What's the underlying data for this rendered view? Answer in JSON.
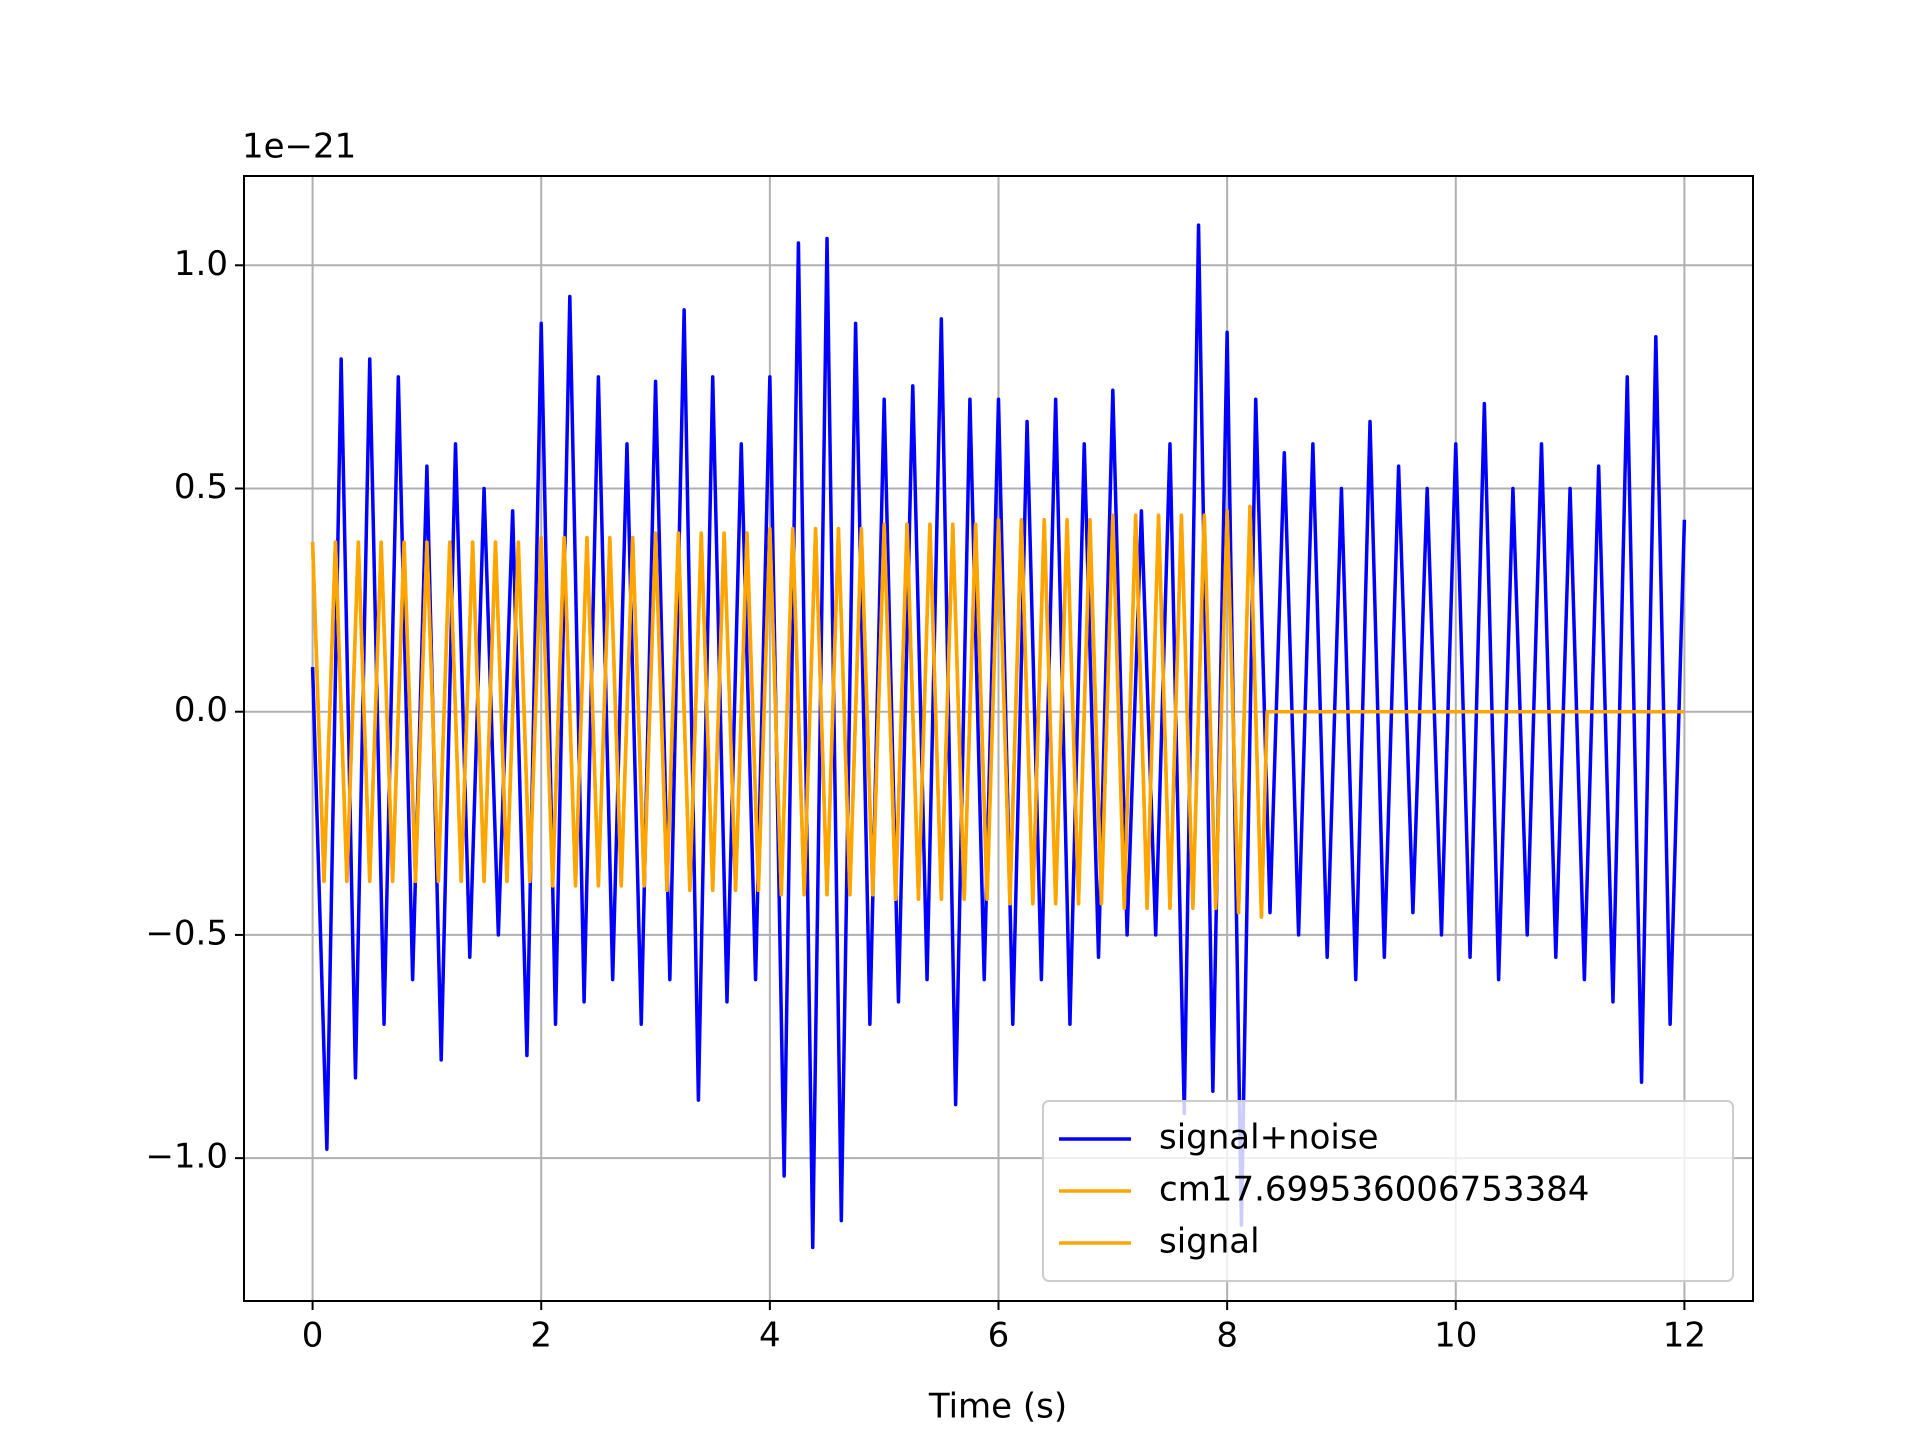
{
  "chart_data": {
    "type": "line",
    "xlabel": "Time (s)",
    "y_offset_label": "1e−21",
    "xlim": [
      -0.6,
      12.6
    ],
    "xticks": [
      0,
      2,
      4,
      6,
      8,
      10,
      12
    ],
    "ylim": [
      -1.32,
      1.2
    ],
    "yticks": [
      {
        "value": -1.0,
        "label": "−1.0"
      },
      {
        "value": -0.5,
        "label": "−0.5"
      },
      {
        "value": 0.0,
        "label": "0.0"
      },
      {
        "value": 0.5,
        "label": "0.5"
      },
      {
        "value": 1.0,
        "label": "1.0"
      }
    ],
    "grid": true,
    "legend": "lower right",
    "series": [
      {
        "name": "signal+noise",
        "color": "#0000ff",
        "x": [
          0,
          0.125,
          0.25,
          0.375,
          0.5,
          0.625,
          0.75,
          0.875,
          1,
          1.125,
          1.25,
          1.375,
          1.5,
          1.625,
          1.75,
          1.875,
          2,
          2.125,
          2.25,
          2.375,
          2.5,
          2.625,
          2.75,
          2.875,
          3,
          3.125,
          3.25,
          3.375,
          3.5,
          3.625,
          3.75,
          3.875,
          4,
          4.125,
          4.25,
          4.375,
          4.5,
          4.625,
          4.75,
          4.875,
          5,
          5.125,
          5.25,
          5.375,
          5.5,
          5.625,
          5.75,
          5.875,
          6,
          6.125,
          6.25,
          6.375,
          6.5,
          6.625,
          6.75,
          6.875,
          7,
          7.125,
          7.25,
          7.375,
          7.5,
          7.625,
          7.75,
          7.875,
          8,
          8.125,
          8.25,
          8.375,
          8.5,
          8.625,
          8.75,
          8.875,
          9,
          9.125,
          9.25,
          9.375,
          9.5,
          9.625,
          9.75,
          9.875,
          10,
          10.125,
          10.25,
          10.375,
          10.5,
          10.625,
          10.75,
          10.875,
          11,
          11.125,
          11.25,
          11.375,
          11.5,
          11.625,
          11.75,
          11.875,
          12
        ],
        "values": [
          0.1,
          -0.98,
          0.79,
          -0.82,
          0.79,
          -0.7,
          0.75,
          -0.6,
          0.55,
          -0.78,
          0.6,
          -0.55,
          0.5,
          -0.5,
          0.45,
          -0.77,
          0.87,
          -0.7,
          0.93,
          -0.65,
          0.75,
          -0.6,
          0.6,
          -0.7,
          0.74,
          -0.6,
          0.9,
          -0.87,
          0.75,
          -0.65,
          0.6,
          -0.6,
          0.75,
          -1.04,
          1.05,
          -1.2,
          1.06,
          -1.14,
          0.87,
          -0.7,
          0.7,
          -0.65,
          0.73,
          -0.6,
          0.88,
          -0.88,
          0.7,
          -0.6,
          0.7,
          -0.7,
          0.65,
          -0.6,
          0.7,
          -0.7,
          0.6,
          -0.55,
          0.72,
          -0.5,
          0.45,
          -0.5,
          0.6,
          -0.9,
          1.09,
          -0.85,
          0.85,
          -1.15,
          0.7,
          -0.45,
          0.58,
          -0.5,
          0.6,
          -0.55,
          0.5,
          -0.6,
          0.65,
          -0.55,
          0.55,
          -0.45,
          0.5,
          -0.5,
          0.6,
          -0.55,
          0.69,
          -0.6,
          0.5,
          -0.5,
          0.6,
          -0.55,
          0.5,
          -0.6,
          0.55,
          -0.65,
          0.75,
          -0.83,
          0.84,
          -0.7,
          0.43
        ]
      },
      {
        "name": "cm17.699536006753384",
        "color": "#ffa500",
        "x": [
          0,
          0.1,
          0.2,
          0.3,
          0.4,
          0.5,
          0.6,
          0.7,
          0.8,
          0.9,
          1,
          1.1,
          1.2,
          1.3,
          1.4,
          1.5,
          1.6,
          1.7,
          1.8,
          1.9,
          2,
          2.1,
          2.2,
          2.3,
          2.4,
          2.5,
          2.6,
          2.7,
          2.8,
          2.9,
          3,
          3.1,
          3.2,
          3.3,
          3.4,
          3.5,
          3.6,
          3.7,
          3.8,
          3.9,
          4,
          4.1,
          4.2,
          4.3,
          4.4,
          4.5,
          4.6,
          4.7,
          4.8,
          4.9,
          5,
          5.1,
          5.2,
          5.3,
          5.4,
          5.5,
          5.6,
          5.7,
          5.8,
          5.9,
          6,
          6.1,
          6.2,
          6.3,
          6.4,
          6.5,
          6.6,
          6.7,
          6.8,
          6.9,
          7,
          7.1,
          7.2,
          7.3,
          7.4,
          7.5,
          7.6,
          7.7,
          7.8,
          7.9,
          8,
          8.1,
          8.2,
          8.3,
          8.35,
          12
        ],
        "values": [
          0.38,
          -0.38,
          0.38,
          -0.38,
          0.38,
          -0.38,
          0.38,
          -0.38,
          0.38,
          -0.38,
          0.38,
          -0.38,
          0.38,
          -0.38,
          0.38,
          -0.38,
          0.38,
          -0.38,
          0.38,
          -0.38,
          0.39,
          -0.39,
          0.39,
          -0.39,
          0.39,
          -0.39,
          0.39,
          -0.39,
          0.39,
          -0.39,
          0.4,
          -0.4,
          0.4,
          -0.4,
          0.4,
          -0.4,
          0.4,
          -0.4,
          0.4,
          -0.4,
          0.41,
          -0.41,
          0.41,
          -0.41,
          0.41,
          -0.41,
          0.41,
          -0.41,
          0.41,
          -0.41,
          0.42,
          -0.42,
          0.42,
          -0.42,
          0.42,
          -0.42,
          0.42,
          -0.42,
          0.42,
          -0.42,
          0.43,
          -0.43,
          0.43,
          -0.43,
          0.43,
          -0.43,
          0.43,
          -0.43,
          0.43,
          -0.43,
          0.44,
          -0.44,
          0.44,
          -0.44,
          0.44,
          -0.44,
          0.44,
          -0.44,
          0.44,
          -0.44,
          0.45,
          -0.45,
          0.46,
          -0.46,
          0,
          0
        ]
      },
      {
        "name": "signal",
        "color": "#ffa500",
        "x": [
          0,
          0.1,
          0.2,
          0.3,
          0.4,
          0.5,
          0.6,
          0.7,
          0.8,
          0.9,
          1,
          1.1,
          1.2,
          1.3,
          1.4,
          1.5,
          1.6,
          1.7,
          1.8,
          1.9,
          2,
          2.1,
          2.2,
          2.3,
          2.4,
          2.5,
          2.6,
          2.7,
          2.8,
          2.9,
          3,
          3.1,
          3.2,
          3.3,
          3.4,
          3.5,
          3.6,
          3.7,
          3.8,
          3.9,
          4,
          4.1,
          4.2,
          4.3,
          4.4,
          4.5,
          4.6,
          4.7,
          4.8,
          4.9,
          5,
          5.1,
          5.2,
          5.3,
          5.4,
          5.5,
          5.6,
          5.7,
          5.8,
          5.9,
          6,
          6.1,
          6.2,
          6.3,
          6.4,
          6.5,
          6.6,
          6.7,
          6.8,
          6.9,
          7,
          7.1,
          7.2,
          7.3,
          7.4,
          7.5,
          7.6,
          7.7,
          7.8,
          7.9,
          8,
          8.1,
          8.2,
          8.3,
          8.35,
          12
        ],
        "values": [
          0.38,
          -0.38,
          0.38,
          -0.38,
          0.38,
          -0.38,
          0.38,
          -0.38,
          0.38,
          -0.38,
          0.38,
          -0.38,
          0.38,
          -0.38,
          0.38,
          -0.38,
          0.38,
          -0.38,
          0.38,
          -0.38,
          0.39,
          -0.39,
          0.39,
          -0.39,
          0.39,
          -0.39,
          0.39,
          -0.39,
          0.39,
          -0.39,
          0.4,
          -0.4,
          0.4,
          -0.4,
          0.4,
          -0.4,
          0.4,
          -0.4,
          0.4,
          -0.4,
          0.41,
          -0.41,
          0.41,
          -0.41,
          0.41,
          -0.41,
          0.41,
          -0.41,
          0.41,
          -0.41,
          0.42,
          -0.42,
          0.42,
          -0.42,
          0.42,
          -0.42,
          0.42,
          -0.42,
          0.42,
          -0.42,
          0.43,
          -0.43,
          0.43,
          -0.43,
          0.43,
          -0.43,
          0.43,
          -0.43,
          0.43,
          -0.43,
          0.44,
          -0.44,
          0.44,
          -0.44,
          0.44,
          -0.44,
          0.44,
          -0.44,
          0.44,
          -0.44,
          0.45,
          -0.45,
          0.46,
          -0.46,
          0,
          0
        ]
      }
    ]
  }
}
